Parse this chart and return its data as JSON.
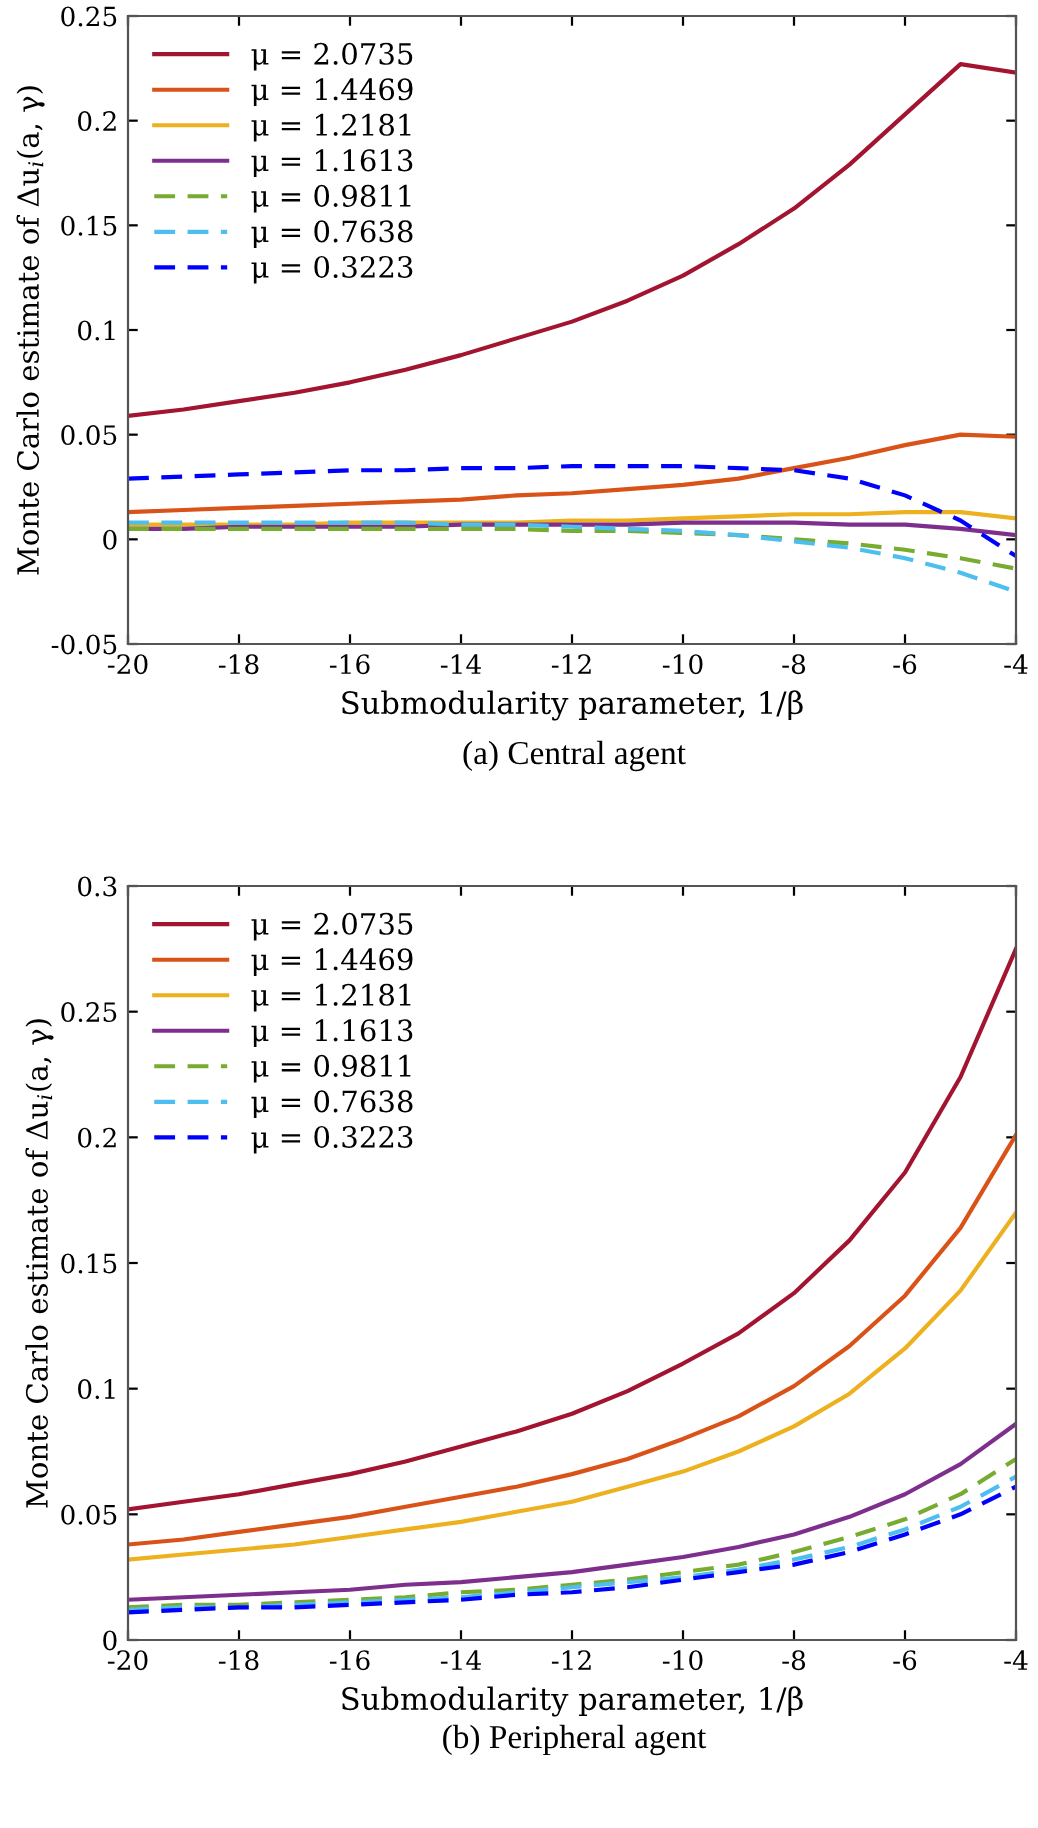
{
  "chart_data": [
    {
      "type": "line",
      "xlabel": "Submodularity parameter, 1/β",
      "ylabel": "Monte Carlo estimate of Δu$_{i}$(a, γ)",
      "annotations": [
        "(a) Central agent"
      ],
      "x": [
        -20,
        -19,
        -18,
        -17,
        -16,
        -15,
        -14,
        -13,
        -12,
        -11,
        -10,
        -9,
        -8,
        -7,
        -6,
        -5,
        -4
      ],
      "xlim": [
        -20,
        -4
      ],
      "xticks": [
        -20,
        -18,
        -16,
        -14,
        -12,
        -10,
        -8,
        -6,
        -4
      ],
      "ylim": [
        -0.05,
        0.25
      ],
      "yticks": [
        -0.05,
        0,
        0.05,
        0.1,
        0.15,
        0.2,
        0.25
      ],
      "grid": false,
      "legend": "top left",
      "series": [
        {
          "name": "μ = 2.0735",
          "color": "#a2142f",
          "line_style": "solid",
          "values": [
            0.059,
            0.062,
            0.066,
            0.07,
            0.075,
            0.081,
            0.088,
            0.096,
            0.104,
            0.114,
            0.126,
            0.141,
            0.158,
            0.179,
            0.203,
            0.227,
            0.223
          ]
        },
        {
          "name": "μ = 1.4469",
          "color": "#d95319",
          "line_style": "solid",
          "values": [
            0.013,
            0.014,
            0.015,
            0.016,
            0.017,
            0.018,
            0.019,
            0.021,
            0.022,
            0.024,
            0.026,
            0.029,
            0.034,
            0.039,
            0.045,
            0.05,
            0.049
          ]
        },
        {
          "name": "μ = 1.2181",
          "color": "#edb120",
          "line_style": "solid",
          "values": [
            0.007,
            0.007,
            0.007,
            0.007,
            0.008,
            0.008,
            0.008,
            0.008,
            0.009,
            0.009,
            0.01,
            0.011,
            0.012,
            0.012,
            0.013,
            0.013,
            0.01
          ]
        },
        {
          "name": "μ = 1.1613",
          "color": "#7e2f8e",
          "line_style": "solid",
          "values": [
            0.005,
            0.005,
            0.006,
            0.006,
            0.006,
            0.006,
            0.007,
            0.007,
            0.007,
            0.007,
            0.008,
            0.008,
            0.008,
            0.007,
            0.007,
            0.005,
            0.002
          ]
        },
        {
          "name": "μ = 0.9811",
          "color": "#77ac30",
          "line_style": "dashed",
          "values": [
            0.005,
            0.005,
            0.005,
            0.005,
            0.005,
            0.005,
            0.005,
            0.005,
            0.004,
            0.004,
            0.003,
            0.002,
            0.0,
            -0.002,
            -0.005,
            -0.009,
            -0.014
          ]
        },
        {
          "name": "μ = 0.7638",
          "color": "#4dbeee",
          "line_style": "dashed",
          "values": [
            0.008,
            0.008,
            0.008,
            0.008,
            0.008,
            0.008,
            0.007,
            0.007,
            0.006,
            0.005,
            0.004,
            0.002,
            -0.001,
            -0.004,
            -0.009,
            -0.016,
            -0.025
          ]
        },
        {
          "name": "μ = 0.3223",
          "color": "#0000ff",
          "line_style": "dashed",
          "values": [
            0.029,
            0.03,
            0.031,
            0.032,
            0.033,
            0.033,
            0.034,
            0.034,
            0.035,
            0.035,
            0.035,
            0.034,
            0.033,
            0.029,
            0.021,
            0.009,
            -0.008
          ]
        }
      ]
    },
    {
      "type": "line",
      "xlabel": "Submodularity parameter, 1/β",
      "ylabel": "Monte Carlo estimate of Δu$_{i}$(a, γ)",
      "annotations": [
        "(b) Peripheral agent"
      ],
      "x": [
        -20,
        -19,
        -18,
        -17,
        -16,
        -15,
        -14,
        -13,
        -12,
        -11,
        -10,
        -9,
        -8,
        -7,
        -6,
        -5,
        -4
      ],
      "xlim": [
        -20,
        -4
      ],
      "xticks": [
        -20,
        -18,
        -16,
        -14,
        -12,
        -10,
        -8,
        -6,
        -4
      ],
      "ylim": [
        0,
        0.3
      ],
      "yticks": [
        0,
        0.05,
        0.1,
        0.15,
        0.2,
        0.25,
        0.3
      ],
      "grid": false,
      "legend": "top left",
      "series": [
        {
          "name": "μ = 2.0735",
          "color": "#a2142f",
          "line_style": "solid",
          "values": [
            0.052,
            0.055,
            0.058,
            0.062,
            0.066,
            0.071,
            0.077,
            0.083,
            0.09,
            0.099,
            0.11,
            0.122,
            0.138,
            0.159,
            0.186,
            0.224,
            0.275
          ]
        },
        {
          "name": "μ = 1.4469",
          "color": "#d95319",
          "line_style": "solid",
          "values": [
            0.038,
            0.04,
            0.043,
            0.046,
            0.049,
            0.053,
            0.057,
            0.061,
            0.066,
            0.072,
            0.08,
            0.089,
            0.101,
            0.117,
            0.137,
            0.164,
            0.201
          ]
        },
        {
          "name": "μ = 1.2181",
          "color": "#edb120",
          "line_style": "solid",
          "values": [
            0.032,
            0.034,
            0.036,
            0.038,
            0.041,
            0.044,
            0.047,
            0.051,
            0.055,
            0.061,
            0.067,
            0.075,
            0.085,
            0.098,
            0.116,
            0.139,
            0.17
          ]
        },
        {
          "name": "μ = 1.1613",
          "color": "#7e2f8e",
          "line_style": "solid",
          "values": [
            0.016,
            0.017,
            0.018,
            0.019,
            0.02,
            0.022,
            0.023,
            0.025,
            0.027,
            0.03,
            0.033,
            0.037,
            0.042,
            0.049,
            0.058,
            0.07,
            0.086
          ]
        },
        {
          "name": "μ = 0.9811",
          "color": "#77ac30",
          "line_style": "dashed",
          "values": [
            0.013,
            0.014,
            0.014,
            0.015,
            0.016,
            0.017,
            0.019,
            0.02,
            0.022,
            0.024,
            0.027,
            0.03,
            0.035,
            0.041,
            0.048,
            0.058,
            0.072
          ]
        },
        {
          "name": "μ = 0.7638",
          "color": "#4dbeee",
          "line_style": "dashed",
          "values": [
            0.012,
            0.013,
            0.013,
            0.014,
            0.015,
            0.016,
            0.017,
            0.019,
            0.021,
            0.023,
            0.025,
            0.028,
            0.032,
            0.037,
            0.044,
            0.053,
            0.065
          ]
        },
        {
          "name": "μ = 0.3223",
          "color": "#0000ff",
          "line_style": "dashed",
          "values": [
            0.011,
            0.012,
            0.013,
            0.013,
            0.014,
            0.015,
            0.016,
            0.018,
            0.019,
            0.021,
            0.024,
            0.027,
            0.03,
            0.035,
            0.042,
            0.05,
            0.061
          ]
        }
      ]
    }
  ]
}
